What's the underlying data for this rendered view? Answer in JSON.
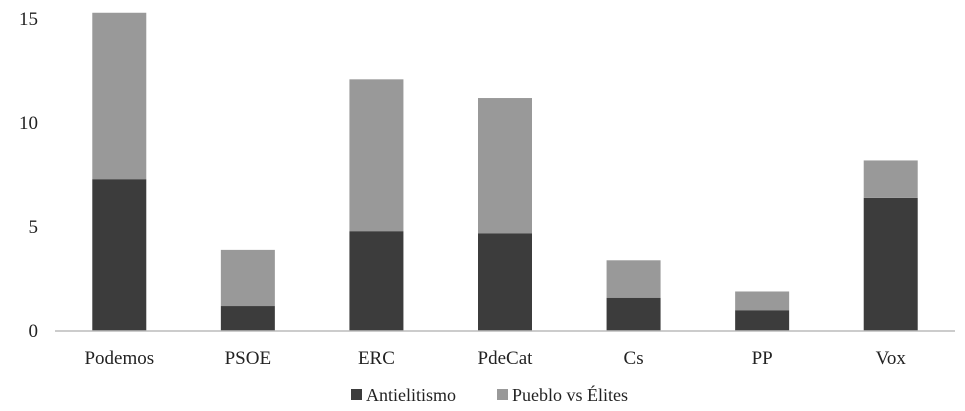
{
  "chart_data": {
    "type": "bar",
    "stacked": true,
    "categories": [
      "Podemos",
      "PSOE",
      "ERC",
      "PdeCat",
      "Cs",
      "PP",
      "Vox"
    ],
    "series": [
      {
        "name": "Antielitismo",
        "color": "#3c3c3c",
        "values": [
          7.3,
          1.2,
          4.8,
          4.7,
          1.6,
          1.0,
          6.4
        ]
      },
      {
        "name": "Pueblo vs Élites",
        "color": "#999999",
        "values": [
          8.0,
          2.7,
          7.3,
          6.5,
          1.8,
          0.9,
          1.8
        ]
      }
    ],
    "yticks": [
      0,
      5,
      10,
      15
    ],
    "ylim": [
      0,
      15
    ],
    "grid": false,
    "legend": "bottom-center"
  }
}
